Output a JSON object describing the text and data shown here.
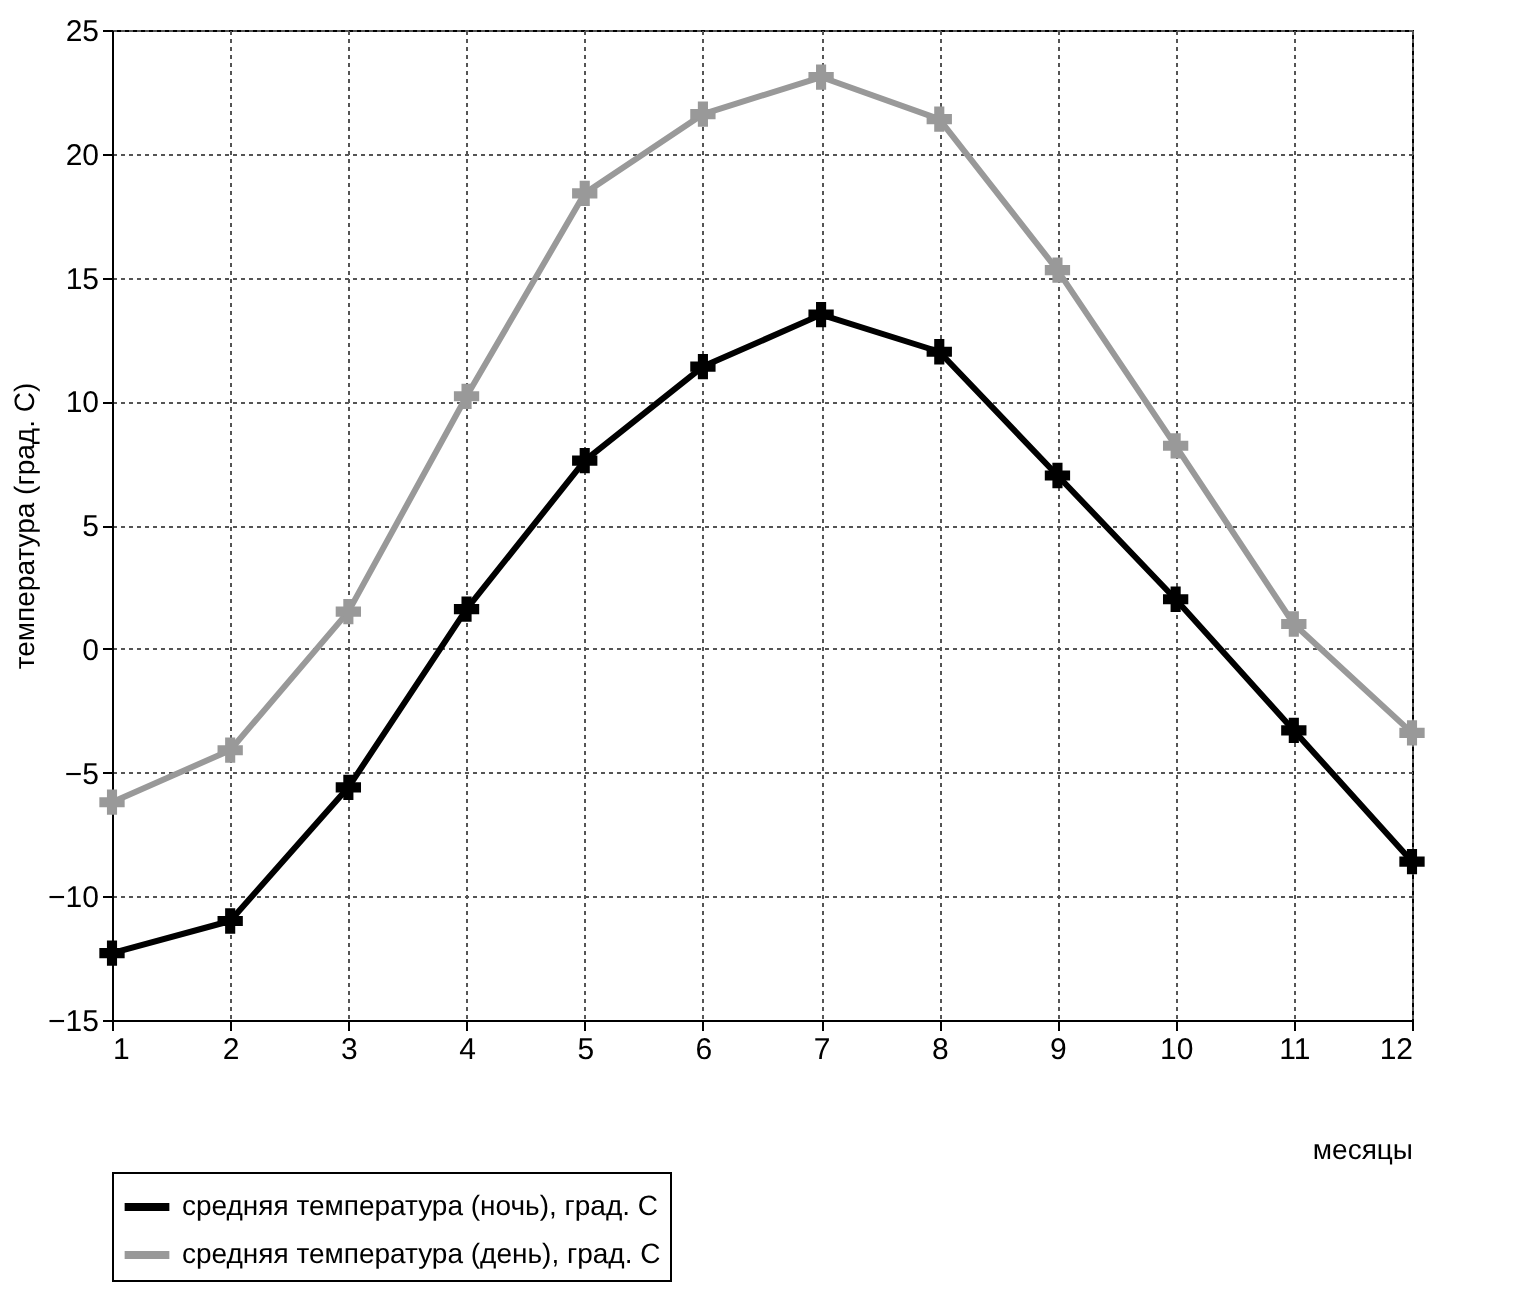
{
  "chart_data": {
    "type": "line",
    "xlabel": "месяцы",
    "ylabel": "температура (град. С)",
    "x": [
      1,
      2,
      3,
      4,
      5,
      6,
      7,
      8,
      9,
      10,
      11,
      12
    ],
    "series": [
      {
        "name": "средняя температура (ночь), град. С",
        "color": "#000000",
        "values": [
          -12.3,
          -11,
          -5.6,
          1.6,
          7.6,
          11.4,
          13.5,
          12,
          7,
          2,
          -3.3,
          -8.6
        ]
      },
      {
        "name": "средняя температура (день), град. С",
        "color": "#999999",
        "values": [
          -6.2,
          -4.1,
          1.5,
          10.2,
          18.4,
          21.6,
          23.1,
          21.4,
          15.3,
          8.2,
          1,
          -3.4
        ]
      }
    ],
    "xlim": [
      1,
      12
    ],
    "xticks": [
      1,
      2,
      3,
      4,
      5,
      6,
      7,
      8,
      9,
      10,
      11,
      12
    ],
    "ylim": [
      -15,
      25
    ],
    "yticks": [
      -15,
      -10,
      -5,
      0,
      5,
      10,
      15,
      20,
      25
    ],
    "grid": true,
    "legend": "bottom",
    "marker": "cross",
    "line_style": "solid"
  }
}
